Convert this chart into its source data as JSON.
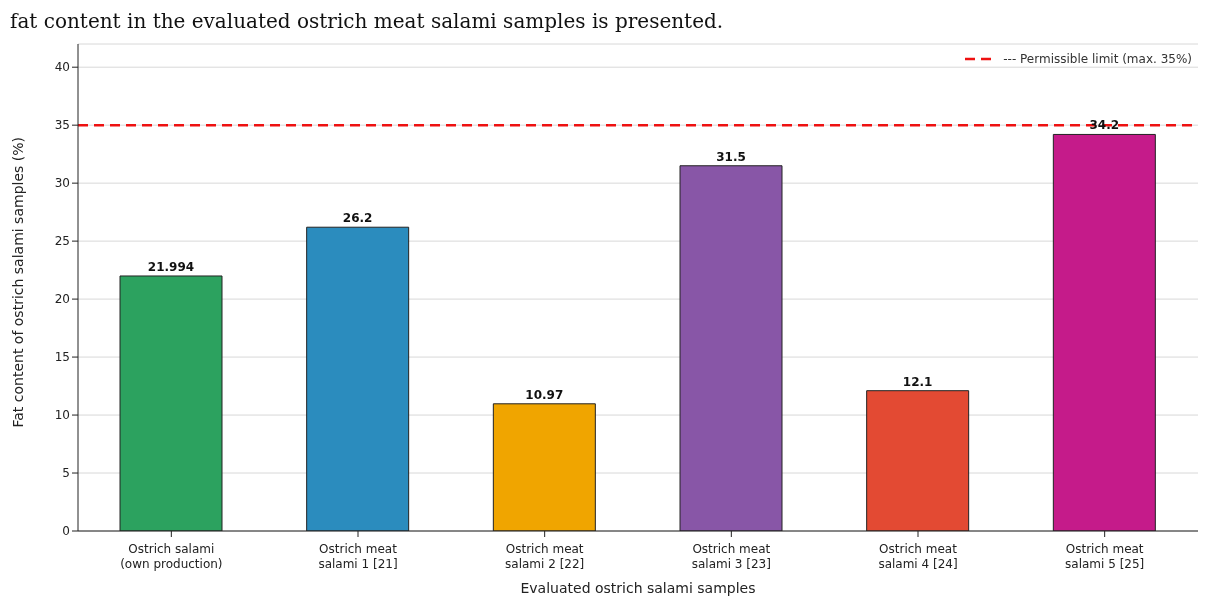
{
  "chart_data": {
    "type": "bar",
    "ylabel": "Fat content of ostrich salami samples (%)",
    "xlabel": "Evaluated ostrich salami samples",
    "annotations": [
      "fat content in the evaluated ostrich meat salami samples is presented."
    ],
    "categories": [
      "Ostrich salami\n(own production)",
      "Ostrich meat\nsalami 1 [21]",
      "Ostrich meat\nsalami 2 [22]",
      "Ostrich meat\nsalami 3 [23]",
      "Ostrich meat\nsalami 4 [24]",
      "Ostrich meat\nsalami 5 [25]"
    ],
    "values": [
      21.994,
      26.2,
      10.97,
      31.5,
      12.1,
      34.2
    ],
    "colors": [
      "#2ca25f",
      "#2b8cbe",
      "#f0a500",
      "#8856a7",
      "#e34a33",
      "#c51b8a"
    ],
    "data_labels": true,
    "ylim": [
      0,
      42
    ],
    "yticks": [
      0,
      5,
      10,
      15,
      20,
      25,
      30,
      35,
      40
    ],
    "grid": "y",
    "ref_lines": [
      {
        "axis": "y",
        "value": 35,
        "label": "--- Permissible limit (max. 35%)",
        "color": "#ee1111",
        "line_style": "dashed"
      }
    ],
    "legend": "top right"
  }
}
